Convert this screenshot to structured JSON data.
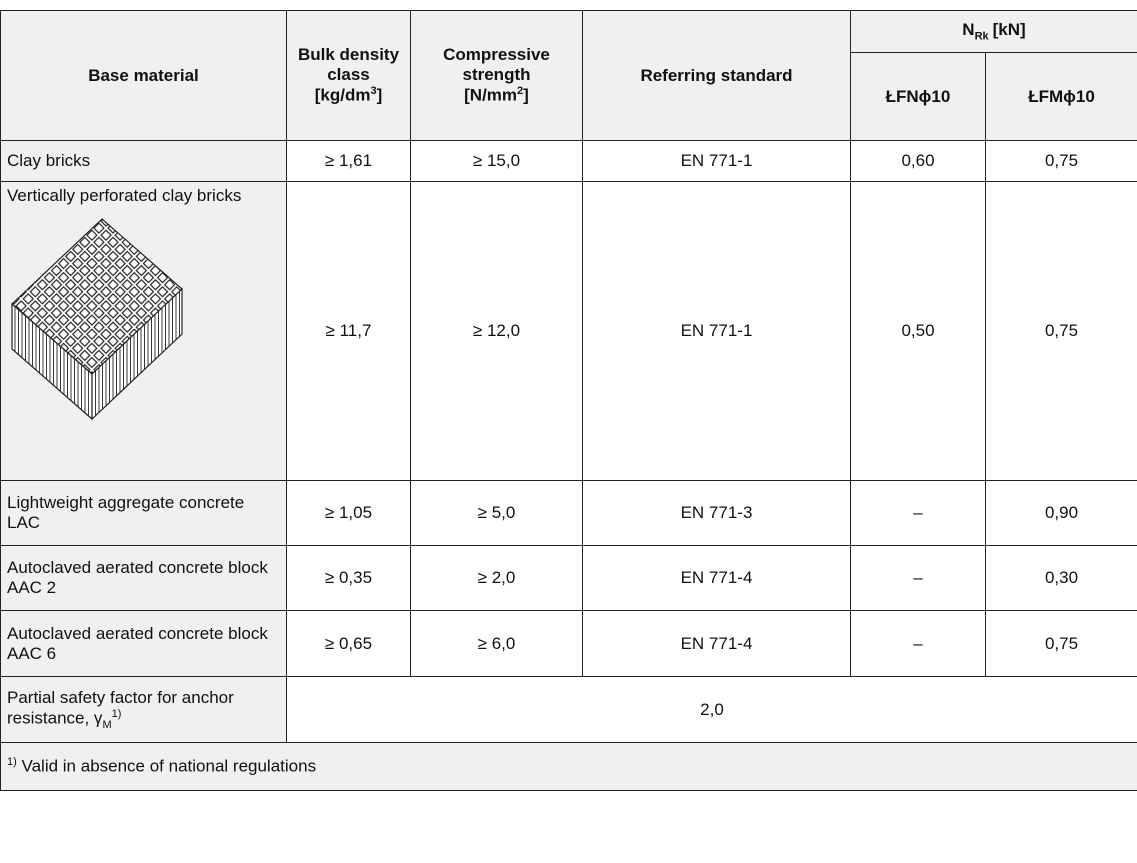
{
  "table": {
    "header": {
      "base_material": "Base material",
      "bulk_density": {
        "text": "Bulk density class",
        "unit": "[kg/dm",
        "unit_sup": "3",
        "unit_end": "]"
      },
      "compressive": {
        "text": "Compressive strength",
        "unit": "[N/mm",
        "unit_sup": "2",
        "unit_end": "]"
      },
      "standard": "Referring standard",
      "nrk": {
        "symbol": "N",
        "sub": "Rk",
        "unit": "[kN]"
      },
      "lfn": "ŁFNϕ10",
      "lfm": "ŁFMϕ10"
    },
    "rows": [
      [
        "Clay bricks",
        "≥ 1,61",
        "≥ 15,0",
        "EN 771-1",
        "0,60",
        "0,75"
      ],
      [
        "Vertically perforated clay bricks",
        "≥ 11,7",
        "≥ 12,0",
        "EN 771-1",
        "0,50",
        "0,75"
      ],
      [
        "Lightweight aggregate concrete LAC",
        "≥ 1,05",
        "≥ 5,0",
        "EN 771-3",
        "–",
        "0,90"
      ],
      [
        "Autoclaved aerated concrete block AAC 2",
        "≥ 0,35",
        "≥ 2,0",
        "EN 771-4",
        "–",
        "0,30"
      ],
      [
        "Autoclaved aerated concrete block AAC 6",
        "≥ 0,65",
        "≥ 6,0",
        "EN 771-4",
        "–",
        "0,75"
      ]
    ],
    "safety": {
      "label": "Partial safety factor for anchor resistance, γ",
      "sub": "M",
      "sup": "1)",
      "value": "2,0"
    },
    "footnote": {
      "marker": "1)",
      "text": "Valid in absence of national regulations"
    }
  }
}
